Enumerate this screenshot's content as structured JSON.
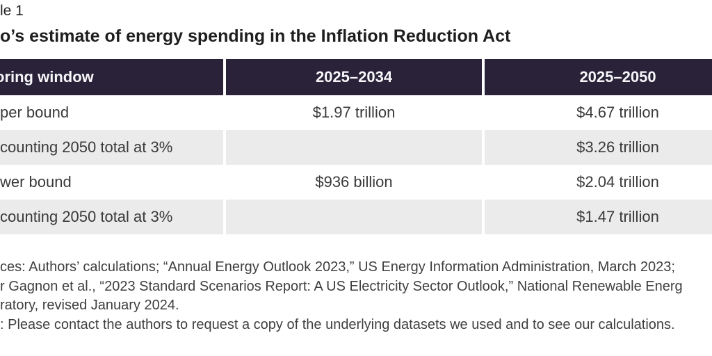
{
  "page": {
    "table_label": "le 1",
    "title": "o’s estimate of energy spending in the Inflation Reduction Act"
  },
  "table": {
    "header": {
      "col_label": "oring window",
      "col_2025_2034": "2025–2034",
      "col_2025_2050": "2025–2050"
    },
    "rows": [
      {
        "label": "per bound",
        "v2034": "$1.97 trillion",
        "v2050": "$4.67 trillion"
      },
      {
        "label": "counting 2050 total at 3%",
        "v2034": "",
        "v2050": "$3.26 trillion"
      },
      {
        "label": "wer bound",
        "v2034": "$936 billion",
        "v2050": "$2.04 trillion"
      },
      {
        "label": "counting 2050 total at 3%",
        "v2034": "",
        "v2050": "$1.47 trillion"
      }
    ]
  },
  "notes": {
    "line1": "ces: Authors’ calculations; “Annual Energy Outlook 2023,” US Energy Information Administration, March 2023;",
    "line2": "r Gagnon et al., “2023 Standard Scenarios Report: A US Electricity Sector Outlook,” National Renewable Energ",
    "line3": "ratory, revised January 2024.",
    "line4": ": Please contact the authors to request a copy of the underlying datasets we used and to see our calculations."
  },
  "colors": {
    "header_bg": "#292239",
    "shaded_row_bg": "#ebebeb",
    "header_text": "#f7f6f9",
    "body_text": "#3a3a3a",
    "note_text": "#3f3f3f",
    "divider": "#ffffff"
  }
}
